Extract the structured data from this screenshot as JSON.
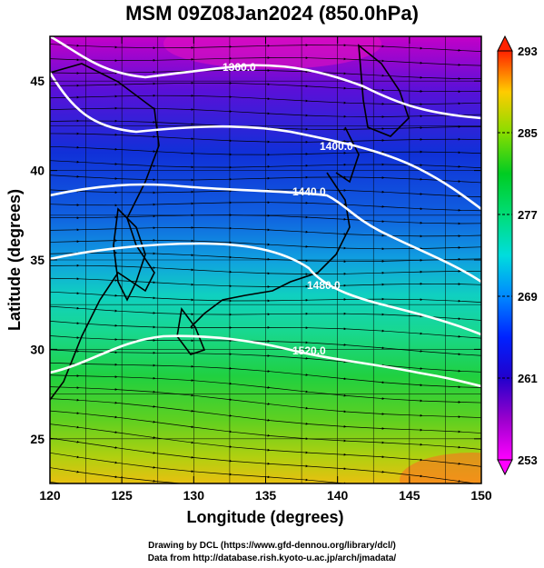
{
  "title": "MSM 09Z08Jan2024 (850.0hPa)",
  "xaxis": {
    "label": "Longitude (degrees)",
    "range": [
      120,
      150
    ],
    "ticks": [
      "120",
      "125",
      "130",
      "135",
      "140",
      "145",
      "150"
    ]
  },
  "yaxis": {
    "label": "Latitude  (degrees)",
    "range": [
      22.5,
      47.5
    ],
    "ticks": [
      "25",
      "30",
      "35",
      "40",
      "45"
    ]
  },
  "colorbar": {
    "min": 253,
    "max": 293,
    "ticks": [
      "253",
      "261",
      "269",
      "277",
      "285",
      "293"
    ]
  },
  "contour_labels": [
    "1360.0",
    "1400.0",
    "1440.0",
    "1480.0",
    "1520.0"
  ],
  "footer": {
    "line1": "Drawing by DCL (https://www.gfd-dennou.org/library/dcl/)",
    "line2": "Data from http://database.rish.kyoto-u.ac.jp/arch/jmadata/"
  },
  "colors": {
    "cold": "#cc00cc",
    "cool": "#0033cc",
    "mild": "#00cccc",
    "warm": "#44cc00",
    "hot": "#ff3300"
  }
}
